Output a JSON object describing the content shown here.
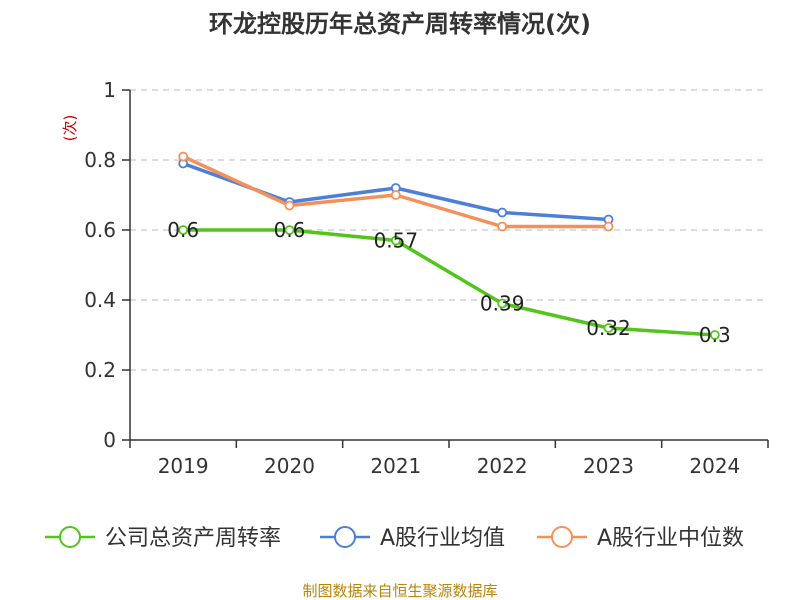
{
  "chart_data": {
    "type": "line",
    "title": "环龙控股历年总资产周转率情况(次)",
    "ylabel": "(次)",
    "xlabel": "",
    "categories": [
      "2019",
      "2020",
      "2021",
      "2022",
      "2023",
      "2024"
    ],
    "ylim": [
      0,
      1
    ],
    "yticks": [
      0,
      0.2,
      0.4,
      0.6,
      0.8,
      1
    ],
    "ytick_labels": [
      "0",
      "0.2",
      "0.4",
      "0.6",
      "0.8",
      "1"
    ],
    "grid": true,
    "legend_position": "bottom",
    "series": [
      {
        "name": "公司总资产周转率",
        "color": "#52c41a",
        "values": [
          0.6,
          0.6,
          0.57,
          0.39,
          0.32,
          0.3
        ],
        "labels": [
          "0.6",
          "0.6",
          "0.57",
          "0.39",
          "0.32",
          "0.3"
        ],
        "show_labels": true
      },
      {
        "name": "A股行业均值",
        "color": "#4e7fd8",
        "values": [
          0.79,
          0.68,
          0.72,
          0.65,
          0.63,
          null
        ],
        "show_labels": false
      },
      {
        "name": "A股行业中位数",
        "color": "#f5905a",
        "values": [
          0.81,
          0.67,
          0.7,
          0.61,
          0.61,
          null
        ],
        "show_labels": false
      }
    ]
  },
  "source": "制图数据来自恒生聚源数据库"
}
